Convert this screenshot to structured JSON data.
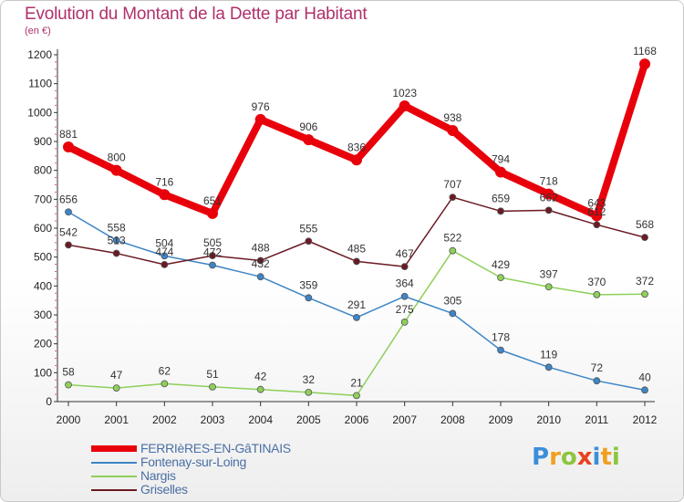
{
  "header": {
    "title": "Evolution du Montant de la Dette par Habitant",
    "subtitle": "(en €)"
  },
  "colors": {
    "title": "#b0306c",
    "legend_text": "#4a6fa5",
    "axis": "#333333"
  },
  "chart_data": {
    "type": "line",
    "title": "Evolution du Montant de la Dette par Habitant",
    "subtitle": "(en €)",
    "xlabel": "",
    "ylabel": "",
    "categories": [
      "2000",
      "2001",
      "2002",
      "2003",
      "2004",
      "2005",
      "2006",
      "2007",
      "2008",
      "2009",
      "2010",
      "2011",
      "2012"
    ],
    "ylim": [
      0,
      1200
    ],
    "yticks": [
      0,
      100,
      200,
      300,
      400,
      500,
      600,
      700,
      800,
      900,
      1000,
      1100,
      1200
    ],
    "grid": false,
    "legend_position": "bottom-left",
    "series": [
      {
        "name": "FERRIèRES-EN-GâTINAIS",
        "color": "#e8000b",
        "values": [
          881,
          800,
          716,
          651,
          976,
          906,
          836,
          1023,
          938,
          794,
          718,
          643,
          1168
        ],
        "labels": [
          "881",
          "800",
          "716",
          "651",
          "976",
          "906",
          "836",
          "1023",
          "938",
          "794",
          "718",
          "643",
          "1168"
        ]
      },
      {
        "name": "Fontenay-sur-Loing",
        "color": "#3d85c6",
        "values": [
          656,
          558,
          504,
          472,
          432,
          359,
          291,
          364,
          305,
          178,
          119,
          72,
          40
        ],
        "labels": [
          "656",
          "558",
          "504",
          "472",
          "432",
          "359",
          "291",
          "364",
          "305",
          "178",
          "119",
          "72",
          "40"
        ]
      },
      {
        "name": "Nargis",
        "color": "#8ed05a",
        "values": [
          58,
          47,
          62,
          51,
          42,
          32,
          21,
          275,
          522,
          429,
          397,
          370,
          372
        ],
        "labels": [
          "58",
          "47",
          "62",
          "51",
          "42",
          "32",
          "21",
          "275",
          "522",
          "429",
          "397",
          "370",
          "372"
        ]
      },
      {
        "name": "Griselles",
        "color": "#6b1a24",
        "values": [
          542,
          513,
          474,
          505,
          488,
          555,
          485,
          467,
          707,
          659,
          662,
          612,
          568
        ],
        "labels": [
          "542",
          "513",
          "474",
          "505",
          "488",
          "555",
          "485",
          "467",
          "707",
          "659",
          "662",
          "612",
          "568"
        ]
      }
    ]
  },
  "logo": {
    "letters": [
      "P",
      "r",
      "o",
      "x",
      "i",
      "t",
      "i"
    ],
    "colors": [
      "#3b8fd9",
      "#f0a020",
      "#8cc63f",
      "#e8421e",
      "#3b8fd9",
      "#f0a020",
      "#8cc63f"
    ]
  }
}
